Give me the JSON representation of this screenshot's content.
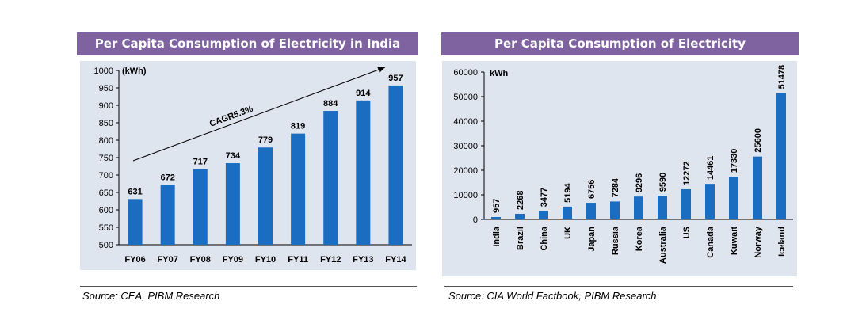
{
  "left_panel": {
    "title": "Per Capita Consumption of Electricity in India",
    "source": "Source: CEA, PIBM Research"
  },
  "right_panel": {
    "title": "Per Capita Consumption of Electricity",
    "source": "Source: CIA World Factbook, PIBM Research"
  },
  "colors": {
    "bar": "#1a6dc0",
    "plot_bg": "#dfe5ee",
    "title_bar": "#7f63a1"
  },
  "chart_data": [
    {
      "type": "bar",
      "title": "Per Capita Consumption of Electricity in India",
      "unit_label": "(kWh)",
      "annotation": "CAGR5.3%",
      "categories": [
        "FY06",
        "FY07",
        "FY08",
        "FY09",
        "FY10",
        "FY11",
        "FY12",
        "FY13",
        "FY14"
      ],
      "values": [
        631,
        672,
        717,
        734,
        779,
        819,
        884,
        914,
        957
      ],
      "ylim": [
        500,
        1000
      ],
      "yticks": [
        500,
        550,
        600,
        650,
        700,
        750,
        800,
        850,
        900,
        950,
        1000
      ],
      "grid": false
    },
    {
      "type": "bar",
      "title": "Per Capita Consumption of Electricity",
      "unit_label": "kWh",
      "categories": [
        "India",
        "Brazil",
        "China",
        "UK",
        "Japan",
        "Russia",
        "Korea",
        "Australia",
        "US",
        "Canada",
        "Kuwait",
        "Norway",
        "Iceland"
      ],
      "values": [
        957,
        2268,
        3477,
        5194,
        6756,
        7284,
        9296,
        9590,
        12272,
        14461,
        17330,
        25600,
        51478
      ],
      "ylim": [
        0,
        60000
      ],
      "yticks": [
        0,
        10000,
        20000,
        30000,
        40000,
        50000,
        60000
      ],
      "grid": false
    }
  ]
}
